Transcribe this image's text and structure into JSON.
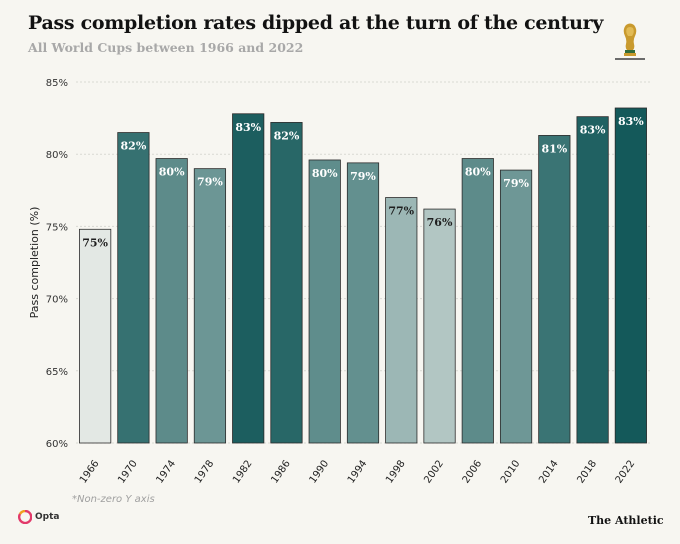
{
  "header": {
    "title": "Pass completion rates dipped at the turn of the century",
    "subtitle": "All World Cups between 1966 and 2022"
  },
  "footer": {
    "footnote": "*Non-zero Y axis",
    "source_logo": "Opta",
    "publisher": "The Athletic"
  },
  "icons": {
    "trophy": "world-cup-trophy-icon",
    "source": "opta-logo-icon"
  },
  "chart_data": {
    "type": "bar",
    "title": "Pass completion rates dipped at the turn of the century",
    "subtitle": "All World Cups between 1966 and 2022",
    "xlabel": "",
    "ylabel": "Pass completion (%)",
    "ylim": [
      60,
      85
    ],
    "yticks": [
      60,
      65,
      70,
      75,
      80,
      85
    ],
    "ytick_labels": [
      "60%",
      "65%",
      "70%",
      "75%",
      "80%",
      "85%"
    ],
    "grid": true,
    "categories": [
      "1966",
      "1970",
      "1974",
      "1978",
      "1982",
      "1986",
      "1990",
      "1994",
      "1998",
      "2002",
      "2006",
      "2010",
      "2014",
      "2018",
      "2022"
    ],
    "values": [
      74.8,
      81.5,
      79.7,
      79.0,
      82.8,
      82.2,
      79.6,
      79.4,
      77.0,
      76.2,
      79.7,
      78.9,
      81.3,
      82.6,
      83.2
    ],
    "data_labels": [
      "75%",
      "82%",
      "80%",
      "79%",
      "83%",
      "82%",
      "80%",
      "79%",
      "77%",
      "76%",
      "80%",
      "79%",
      "81%",
      "83%",
      "83%"
    ],
    "colors": {
      "low": "#e3e8e4",
      "high": "#14595a",
      "label_dark": "#1f1f1f",
      "label_light": "#ffffff",
      "grid": "#d9d9d3",
      "bar_outline": "#2b2b2b"
    }
  }
}
